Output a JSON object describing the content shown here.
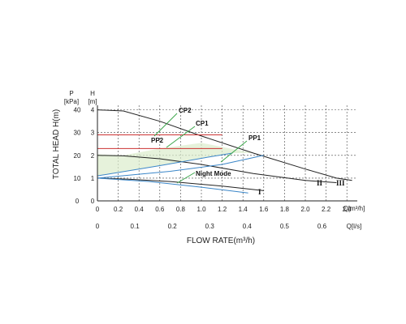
{
  "chart_data": {
    "type": "line",
    "y_axis_title": "TOTAL HEAD H(m)",
    "x_axis_title": "FLOW RATE(m³/h)",
    "p_unit": "P",
    "p_unit2": "[kPa]",
    "h_unit": "H",
    "h_unit2": "[m]",
    "q_m3h_unit": "Q[m³/h]",
    "q_ls_unit": "Q[l/s]",
    "ylim": [
      0,
      4.2
    ],
    "xlim": [
      0,
      2.5
    ],
    "h_ticks": [
      "0",
      "1",
      "2",
      "3",
      "4"
    ],
    "p_ticks": [
      "0",
      "10",
      "20",
      "30",
      "40"
    ],
    "q_m3h_ticks": [
      "0",
      "0.2",
      "0.4",
      "0.6",
      "0.8",
      "1.0",
      "1.2",
      "1.4",
      "1.6",
      "1.8",
      "2.0",
      "2.2",
      "2.4"
    ],
    "q_ls_ticks": [
      "0",
      "0.1",
      "0.2",
      "0.3",
      "0.4",
      "0.5",
      "0.6"
    ],
    "grid": true,
    "series": [
      {
        "name": "III",
        "color": "#222222",
        "points": [
          [
            0,
            4.0
          ],
          [
            0.25,
            3.95
          ],
          [
            0.6,
            3.5
          ],
          [
            1.0,
            2.85
          ],
          [
            1.5,
            2.1
          ],
          [
            2.0,
            1.4
          ],
          [
            2.3,
            1.0
          ],
          [
            2.45,
            0.9
          ]
        ]
      },
      {
        "name": "II",
        "color": "#222222",
        "points": [
          [
            0,
            2.0
          ],
          [
            0.25,
            1.98
          ],
          [
            0.6,
            1.85
          ],
          [
            1.0,
            1.6
          ],
          [
            1.5,
            1.2
          ],
          [
            2.0,
            0.9
          ],
          [
            2.3,
            0.8
          ]
        ]
      },
      {
        "name": "I",
        "color": "#222222",
        "points": [
          [
            0,
            1.0
          ],
          [
            0.3,
            0.95
          ],
          [
            0.7,
            0.85
          ],
          [
            1.2,
            0.65
          ],
          [
            1.6,
            0.45
          ]
        ]
      },
      {
        "name": "CP2",
        "color": "#cc3333",
        "points": [
          [
            0,
            2.9
          ],
          [
            1.2,
            2.9
          ]
        ]
      },
      {
        "name": "CP1",
        "color": "#cc3333",
        "points": [
          [
            0,
            2.3
          ],
          [
            1.2,
            2.3
          ]
        ]
      },
      {
        "name": "PP2",
        "color": "#3a86c8",
        "points": [
          [
            0,
            1.1
          ],
          [
            0.6,
            1.55
          ],
          [
            1.1,
            1.95
          ],
          [
            1.3,
            2.1
          ]
        ]
      },
      {
        "name": "PP1",
        "color": "#3a86c8",
        "points": [
          [
            0,
            1.0
          ],
          [
            0.7,
            1.3
          ],
          [
            1.2,
            1.6
          ],
          [
            1.6,
            2.0
          ]
        ]
      },
      {
        "name": "Night Mode",
        "color": "#3a86c8",
        "points": [
          [
            0,
            1.0
          ],
          [
            0.5,
            0.85
          ],
          [
            1.0,
            0.6
          ],
          [
            1.45,
            0.35
          ]
        ]
      }
    ],
    "labels": {
      "cp2": "CP2",
      "cp1": "CP1",
      "pp2": "PP2",
      "pp1": "PP1",
      "night": "Night Mode",
      "i": "I",
      "ii": "II",
      "iii": "III"
    }
  }
}
